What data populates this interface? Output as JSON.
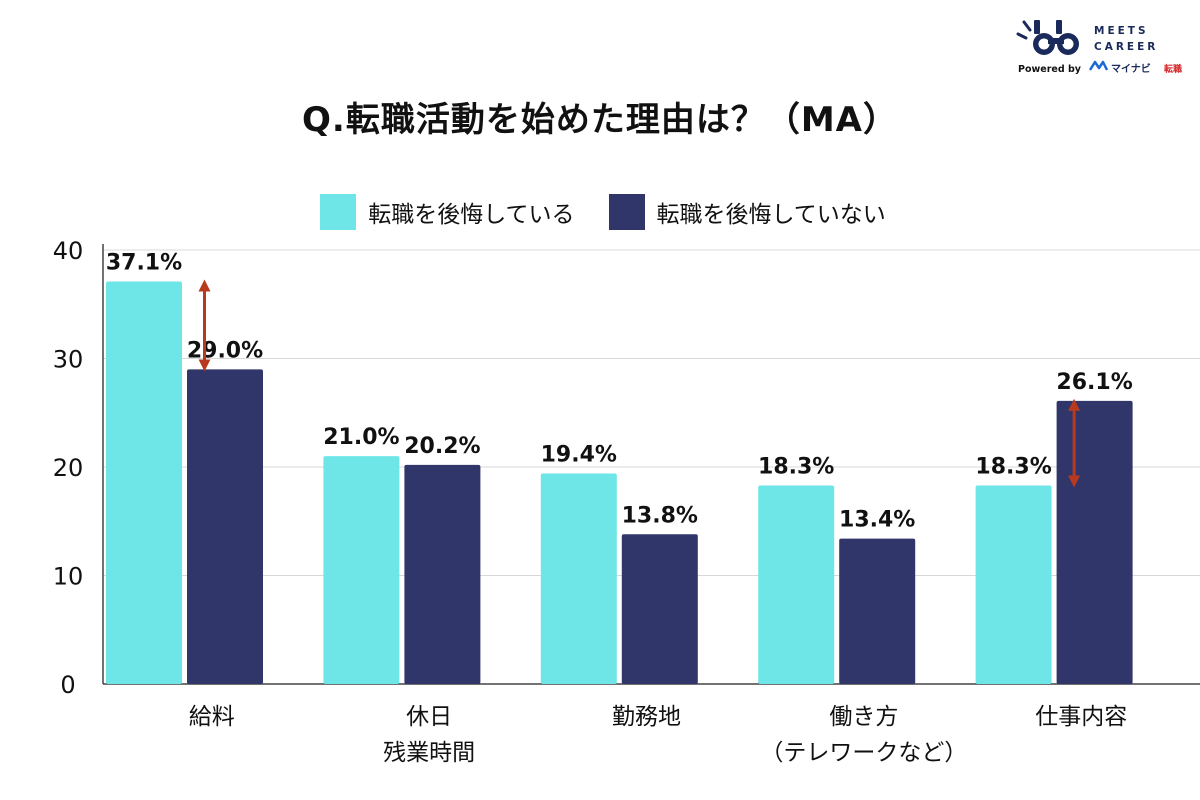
{
  "title": "Q.転職活動を始めた理由は？（MA）",
  "logo": {
    "brand": "MEETS CAREER",
    "line1": "MEETS",
    "line2": "CAREER",
    "powered": "Powered by",
    "partner": "マイナビ",
    "partner_suffix": "転職"
  },
  "colors": {
    "regret": "#6ee6e8",
    "no_regret": "#30356a",
    "grid": "#d8d8d8",
    "axis": "#444444",
    "arrow": "#b83a1e"
  },
  "chart_data": {
    "type": "bar",
    "title": "Q.転職活動を始めた理由は？（MA）",
    "categories": [
      [
        "給料"
      ],
      [
        "休日",
        "残業時間"
      ],
      [
        "勤務地"
      ],
      [
        "働き方",
        "（テレワークなど）"
      ],
      [
        "仕事内容"
      ]
    ],
    "series": [
      {
        "name": "転職を後悔している",
        "values": [
          37.1,
          21.0,
          19.4,
          18.3,
          18.3
        ],
        "labels": [
          "37.1%",
          "21.0%",
          "19.4%",
          "18.3%",
          "18.3%"
        ]
      },
      {
        "name": "転職を後悔していない",
        "values": [
          29.0,
          20.2,
          13.8,
          13.4,
          26.1
        ],
        "labels": [
          "29.0%",
          "20.2%",
          "13.8%",
          "13.4%",
          "26.1%"
        ]
      }
    ],
    "ylim": [
      0,
      40
    ],
    "yticks": [
      0,
      10,
      20,
      30,
      40
    ],
    "grid": true,
    "legend_position": "top-center",
    "annotations": [
      {
        "type": "double-arrow",
        "category_index": 0
      },
      {
        "type": "double-arrow",
        "category_index": 4
      }
    ]
  }
}
